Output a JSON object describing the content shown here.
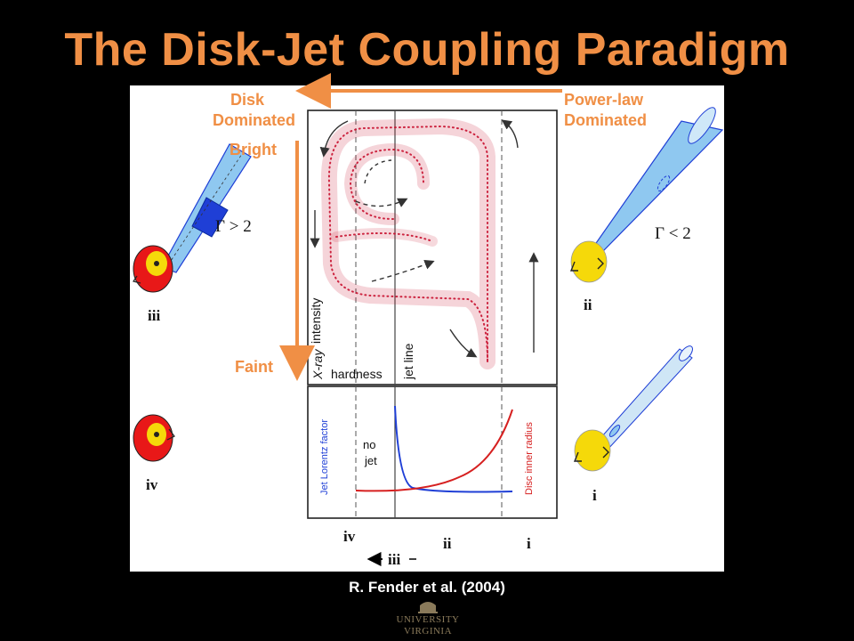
{
  "title": "The Disk-Jet Coupling Paradigm",
  "citation": "R. Fender et al. (2004)",
  "logo": {
    "line1": "UNIVERSITY",
    "line2": "VIRGINIA"
  },
  "overlay": {
    "disk_label": [
      "Disk",
      "Dominated"
    ],
    "powerlaw_label": [
      "Power-law",
      "Dominated"
    ],
    "bright": "Bright",
    "faint": "Faint"
  },
  "diagram": {
    "upper_panel": {
      "yaxis_label": [
        "X-ray",
        "intensity"
      ],
      "xaxis_label": "hardness",
      "jet_line_label": "jet line"
    },
    "lower_panel": {
      "left_label": "Jet Lorentz factor",
      "right_label": "Disc inner radius",
      "no_jet": [
        "no",
        "jet"
      ]
    },
    "state_labels": [
      "iv",
      "ii",
      "i"
    ],
    "transition_label": "iii",
    "side_state_labels": {
      "iii": "iii",
      "iv": "iv",
      "ii": "ii",
      "i": "i"
    },
    "gamma_labels": {
      "high": "Γ > 2",
      "low": "Γ < 2"
    }
  },
  "colors": {
    "accent": "#f08f45",
    "scatter": "#c8102e",
    "lorentz": "#1f3fd6",
    "radius": "#d62020",
    "disk": "#e81818",
    "core": "#f5d90a",
    "jet": "#8fc8f0"
  }
}
